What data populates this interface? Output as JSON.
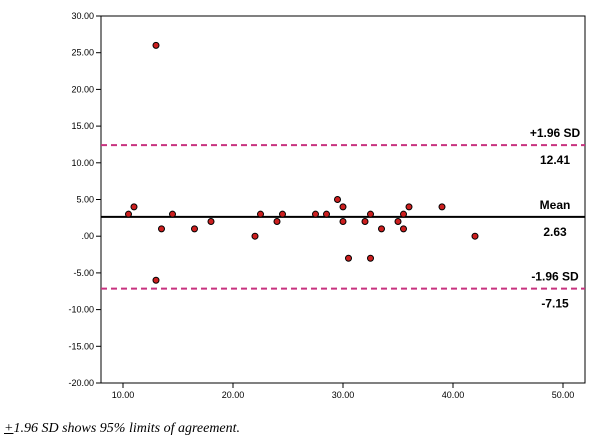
{
  "chart_data": {
    "type": "scatter",
    "title": "",
    "xlabel": "",
    "ylabel": "",
    "xlim": [
      8,
      52
    ],
    "ylim": [
      -20,
      30
    ],
    "x_ticks": [
      10,
      20,
      30,
      40,
      50
    ],
    "x_tick_labels": [
      "10.00",
      "20.00",
      "30.00",
      "40.00",
      "50.00"
    ],
    "y_ticks": [
      30,
      25,
      20,
      15,
      10,
      5,
      0,
      -5,
      -10,
      -15,
      -20
    ],
    "y_tick_labels": [
      "30.00",
      "25.00",
      "20.00",
      "15.00",
      "10.00",
      "5.00",
      ".00",
      "-5.00",
      "-10.00",
      "-15.00",
      "-20.00"
    ],
    "grid": false,
    "marker_color": "#cc1f1f",
    "reference_lines": [
      {
        "name": "+1.96 SD",
        "value": 12.41,
        "value_label": "12.41",
        "style": "dashed",
        "color": "#c8327f"
      },
      {
        "name": "Mean",
        "value": 2.63,
        "value_label": "2.63",
        "style": "solid",
        "color": "#000000"
      },
      {
        "name": "-1.96 SD",
        "value": -7.15,
        "value_label": "-7.15",
        "style": "dashed",
        "color": "#c8327f"
      }
    ],
    "points": [
      {
        "x": 10.5,
        "y": 3
      },
      {
        "x": 11,
        "y": 4
      },
      {
        "x": 13,
        "y": 26
      },
      {
        "x": 13,
        "y": -6
      },
      {
        "x": 13.5,
        "y": 1
      },
      {
        "x": 14.5,
        "y": 3
      },
      {
        "x": 16.5,
        "y": 1
      },
      {
        "x": 18,
        "y": 2
      },
      {
        "x": 22,
        "y": 0
      },
      {
        "x": 22.5,
        "y": 3
      },
      {
        "x": 24,
        "y": 2
      },
      {
        "x": 24.5,
        "y": 3
      },
      {
        "x": 27.5,
        "y": 3
      },
      {
        "x": 28.5,
        "y": 3
      },
      {
        "x": 29.5,
        "y": 5
      },
      {
        "x": 30,
        "y": 4
      },
      {
        "x": 30,
        "y": 2
      },
      {
        "x": 30.5,
        "y": -3
      },
      {
        "x": 32,
        "y": 2
      },
      {
        "x": 32.5,
        "y": 3
      },
      {
        "x": 32.5,
        "y": -3
      },
      {
        "x": 33.5,
        "y": 1
      },
      {
        "x": 35,
        "y": 2
      },
      {
        "x": 35.5,
        "y": 3
      },
      {
        "x": 35.5,
        "y": 1
      },
      {
        "x": 36,
        "y": 4
      },
      {
        "x": 39,
        "y": 4
      },
      {
        "x": 42,
        "y": 0
      }
    ]
  },
  "caption": {
    "pm_symbol": "+",
    "text": "1.96 SD shows 95% limits of agreement."
  }
}
